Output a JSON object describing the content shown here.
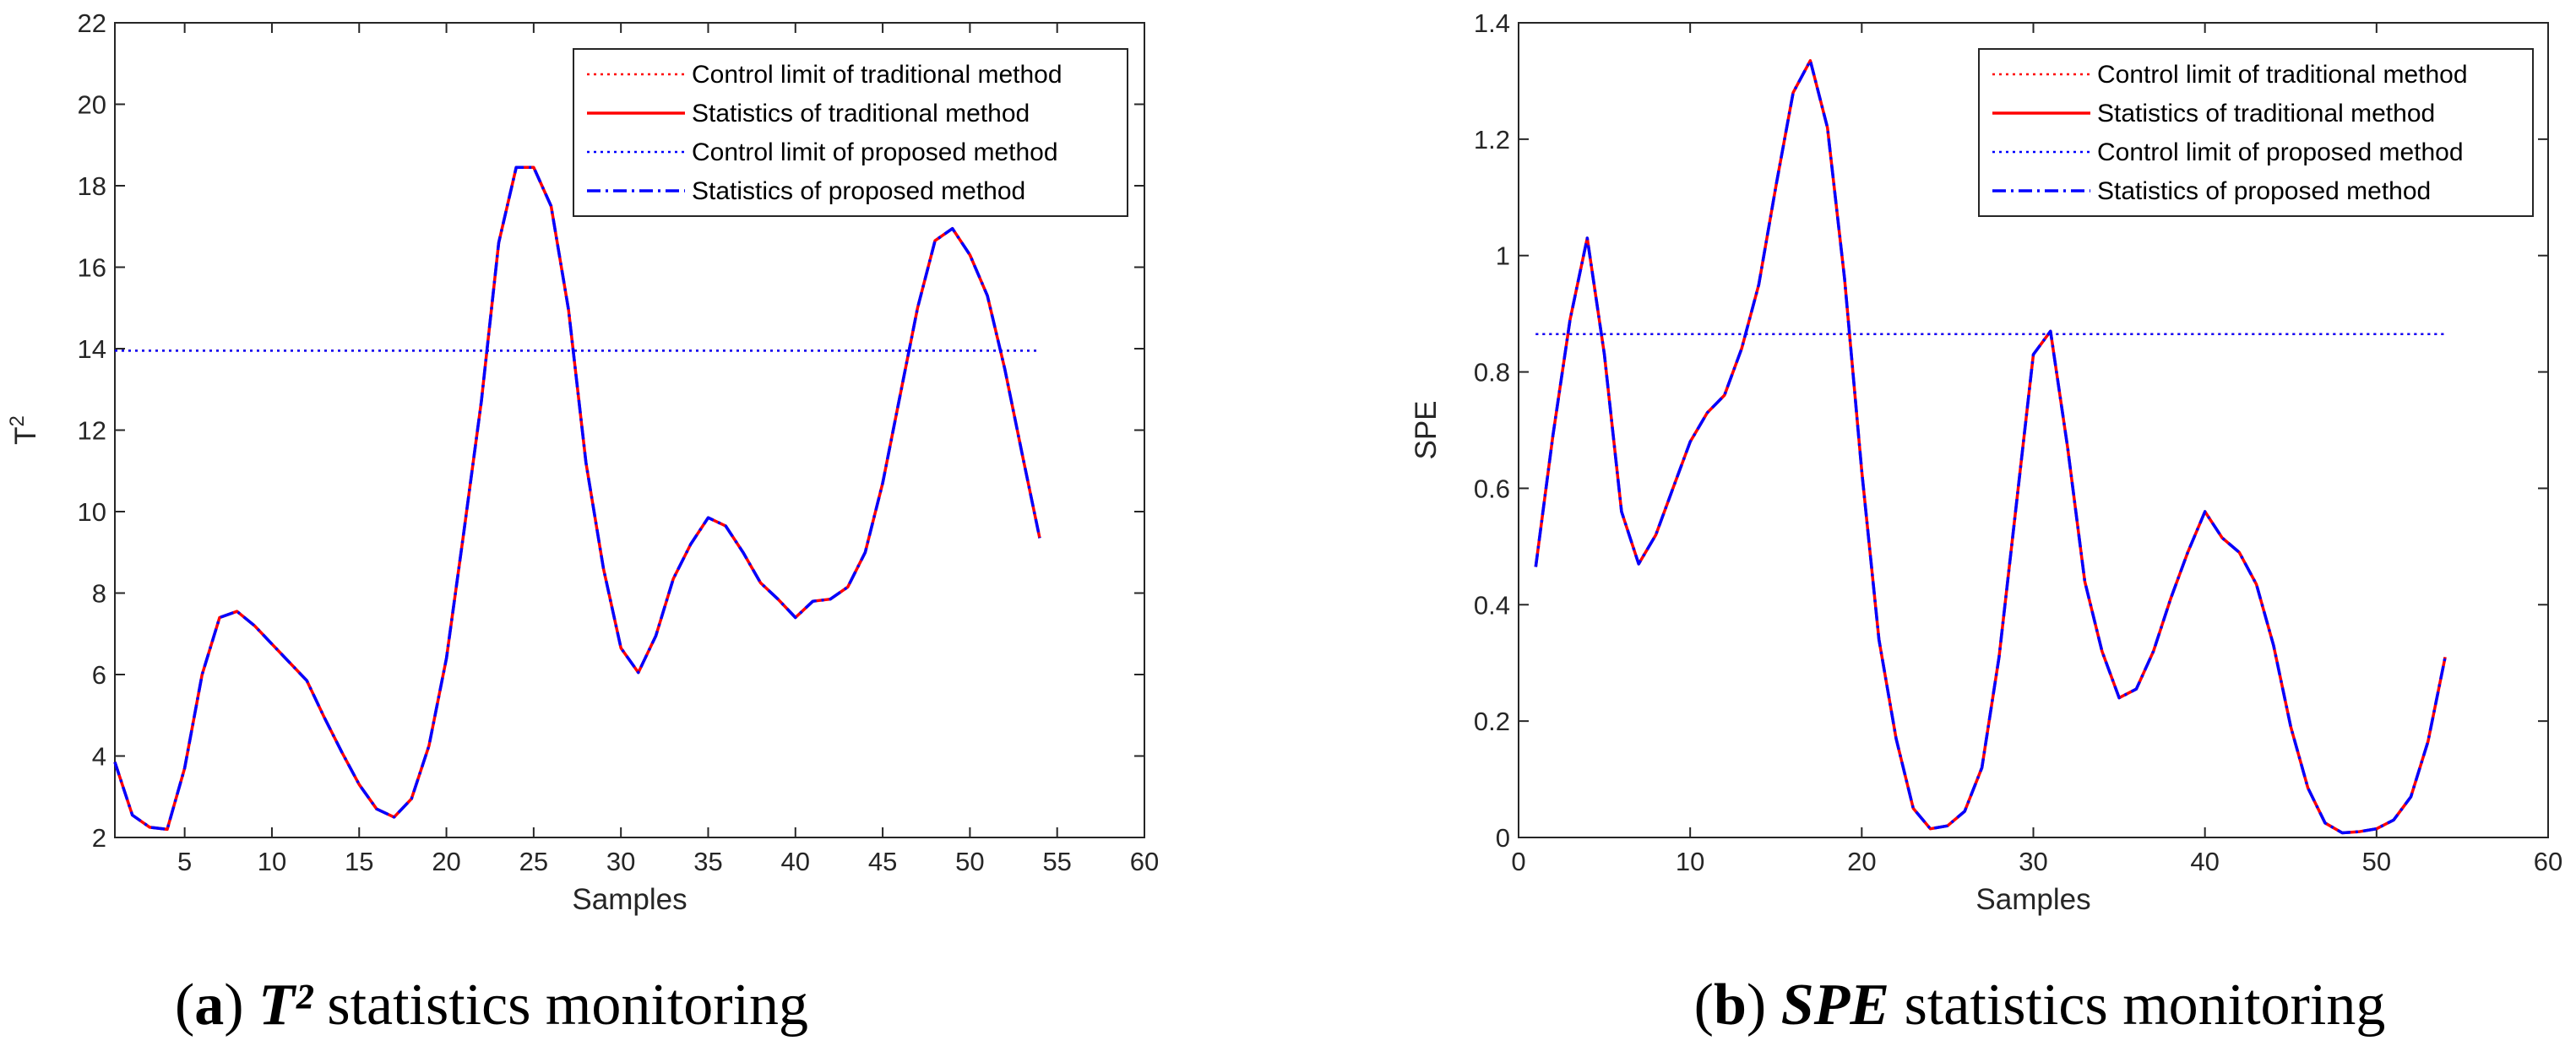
{
  "chart_data": [
    {
      "type": "line",
      "caption": {
        "open": "(",
        "letter": "a",
        "close": ")",
        "stat": "T²",
        "rest": " statistics monitoring"
      },
      "xlabel": "Samples",
      "ylabel": {
        "base": "T",
        "sup": "2"
      },
      "xlim": [
        1,
        60
      ],
      "ylim": [
        2,
        22
      ],
      "xticks": [
        5,
        10,
        15,
        20,
        25,
        30,
        35,
        40,
        45,
        50,
        55,
        60
      ],
      "yticks": [
        2,
        4,
        6,
        8,
        10,
        12,
        14,
        16,
        18,
        20,
        22
      ],
      "control_limit": {
        "value": 13.95,
        "x": [
          1,
          54
        ]
      },
      "x": [
        1,
        2,
        3,
        4,
        5,
        6,
        7,
        8,
        9,
        10,
        11,
        12,
        13,
        14,
        15,
        16,
        17,
        18,
        19,
        20,
        21,
        22,
        23,
        24,
        25,
        26,
        27,
        28,
        29,
        30,
        31,
        32,
        33,
        34,
        35,
        36,
        37,
        38,
        39,
        40,
        41,
        42,
        43,
        44,
        45,
        46,
        47,
        48,
        49,
        50,
        51,
        52,
        53,
        54
      ],
      "values": [
        3.85,
        2.55,
        2.25,
        2.2,
        3.7,
        6.0,
        7.4,
        7.55,
        7.2,
        6.75,
        6.3,
        5.85,
        4.95,
        4.1,
        3.3,
        2.7,
        2.5,
        2.95,
        4.25,
        6.4,
        9.5,
        12.7,
        16.6,
        18.45,
        18.45,
        17.5,
        14.95,
        11.2,
        8.6,
        6.65,
        6.05,
        6.95,
        8.35,
        9.2,
        9.85,
        9.65,
        9.0,
        8.25,
        7.85,
        7.4,
        7.8,
        7.85,
        8.15,
        9.0,
        10.7,
        12.85,
        15.0,
        16.65,
        16.95,
        16.3,
        15.3,
        13.5,
        11.4,
        9.35
      ],
      "legend": [
        {
          "label": "Control limit of traditional method",
          "color": "#ff0000",
          "style": "dotted"
        },
        {
          "label": "Statistics of traditional method",
          "color": "#ff0000",
          "style": "solid"
        },
        {
          "label": "Control limit of proposed method",
          "color": "#0000ff",
          "style": "dotted"
        },
        {
          "label": "Statistics of proposed method",
          "color": "#0000ff",
          "style": "dashdot"
        }
      ]
    },
    {
      "type": "line",
      "caption": {
        "open": "(",
        "letter": "b",
        "close": ")",
        "stat": "SPE",
        "rest": " statistics monitoring"
      },
      "xlabel": "Samples",
      "ylabel": {
        "base": "SPE",
        "sup": ""
      },
      "xlim": [
        0,
        60
      ],
      "ylim": [
        0,
        1.4
      ],
      "xticks": [
        0,
        10,
        20,
        30,
        40,
        50,
        60
      ],
      "yticks": [
        0,
        0.2,
        0.4,
        0.6,
        0.8,
        1,
        1.2,
        1.4
      ],
      "control_limit": {
        "value": 0.865,
        "x": [
          1,
          54
        ]
      },
      "x": [
        1,
        2,
        3,
        4,
        5,
        6,
        7,
        8,
        9,
        10,
        11,
        12,
        13,
        14,
        15,
        16,
        17,
        18,
        19,
        20,
        21,
        22,
        23,
        24,
        25,
        26,
        27,
        28,
        29,
        30,
        31,
        32,
        33,
        34,
        35,
        36,
        37,
        38,
        39,
        40,
        41,
        42,
        43,
        44,
        45,
        46,
        47,
        48,
        49,
        50,
        51,
        52,
        53,
        54
      ],
      "values": [
        0.465,
        0.69,
        0.89,
        1.03,
        0.83,
        0.56,
        0.47,
        0.52,
        0.6,
        0.68,
        0.73,
        0.76,
        0.84,
        0.95,
        1.12,
        1.28,
        1.335,
        1.22,
        0.96,
        0.63,
        0.34,
        0.17,
        0.05,
        0.015,
        0.02,
        0.045,
        0.12,
        0.31,
        0.57,
        0.83,
        0.87,
        0.67,
        0.44,
        0.32,
        0.24,
        0.255,
        0.32,
        0.41,
        0.49,
        0.56,
        0.515,
        0.49,
        0.435,
        0.33,
        0.19,
        0.085,
        0.025,
        0.008,
        0.01,
        0.015,
        0.03,
        0.07,
        0.165,
        0.31
      ],
      "legend": [
        {
          "label": "Control limit of traditional method",
          "color": "#ff0000",
          "style": "dotted"
        },
        {
          "label": "Statistics of traditional method",
          "color": "#ff0000",
          "style": "solid"
        },
        {
          "label": "Control limit of proposed method",
          "color": "#0000ff",
          "style": "dotted"
        },
        {
          "label": "Statistics of proposed method",
          "color": "#0000ff",
          "style": "dashdot"
        }
      ]
    }
  ]
}
